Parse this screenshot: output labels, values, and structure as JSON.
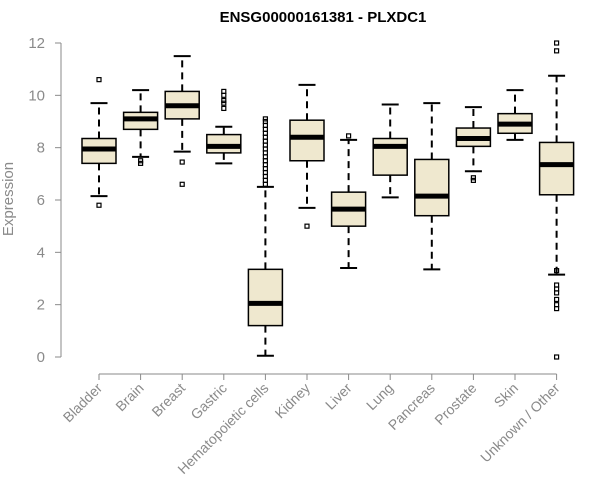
{
  "chart_data": {
    "type": "box",
    "title": "ENSG00000161381 - PLXDC1",
    "ylabel": "Expression",
    "xlabel": "",
    "ylim": [
      0,
      12
    ],
    "yticks": [
      0,
      2,
      4,
      6,
      8,
      10,
      12
    ],
    "grid": false,
    "box_fill": "#efe8cf",
    "box_stroke": "#000000",
    "categories": [
      "Bladder",
      "Brain",
      "Breast",
      "Gastric",
      "Hematopoietic cells",
      "Kidney",
      "Liver",
      "Lung",
      "Pancreas",
      "Prostate",
      "Skin",
      "Unknown / Other"
    ],
    "boxes": [
      {
        "whisker_low": 6.15,
        "q1": 7.4,
        "median": 7.95,
        "q3": 8.35,
        "whisker_high": 9.7,
        "outliers": [
          5.8,
          10.6
        ]
      },
      {
        "whisker_low": 7.65,
        "q1": 8.7,
        "median": 9.1,
        "q3": 9.35,
        "whisker_high": 10.2,
        "outliers": [
          7.4,
          7.5
        ]
      },
      {
        "whisker_low": 7.85,
        "q1": 9.1,
        "median": 9.6,
        "q3": 10.15,
        "whisker_high": 11.5,
        "outliers": [
          6.6,
          7.45
        ]
      },
      {
        "whisker_low": 7.4,
        "q1": 7.8,
        "median": 8.05,
        "q3": 8.5,
        "whisker_high": 8.8,
        "outliers": [
          9.5,
          9.7,
          9.8,
          10.0,
          10.15
        ]
      },
      {
        "whisker_low": 0.05,
        "q1": 1.2,
        "median": 2.05,
        "q3": 3.35,
        "whisker_high": 6.5,
        "outliers": [
          6.6,
          6.75,
          6.9,
          7.05,
          7.2,
          7.35,
          7.5,
          7.65,
          7.8,
          7.95,
          8.1,
          8.25,
          8.4,
          8.55,
          8.7,
          8.85,
          9.0,
          9.1
        ]
      },
      {
        "whisker_low": 5.7,
        "q1": 7.5,
        "median": 8.4,
        "q3": 9.05,
        "whisker_high": 10.4,
        "outliers": [
          5.0
        ]
      },
      {
        "whisker_low": 3.4,
        "q1": 5.0,
        "median": 5.65,
        "q3": 6.3,
        "whisker_high": 8.3,
        "outliers": [
          8.45
        ]
      },
      {
        "whisker_low": 6.1,
        "q1": 6.95,
        "median": 8.05,
        "q3": 8.35,
        "whisker_high": 9.65,
        "outliers": []
      },
      {
        "whisker_low": 3.35,
        "q1": 5.4,
        "median": 6.15,
        "q3": 7.55,
        "whisker_high": 9.7,
        "outliers": []
      },
      {
        "whisker_low": 7.1,
        "q1": 8.05,
        "median": 8.35,
        "q3": 8.75,
        "whisker_high": 9.55,
        "outliers": [
          6.75,
          6.85
        ]
      },
      {
        "whisker_low": 8.3,
        "q1": 8.55,
        "median": 8.9,
        "q3": 9.3,
        "whisker_high": 10.2,
        "outliers": []
      },
      {
        "whisker_low": 3.15,
        "q1": 6.2,
        "median": 7.35,
        "q3": 8.2,
        "whisker_high": 10.75,
        "outliers": [
          0.0,
          1.85,
          2.0,
          2.2,
          2.45,
          2.6,
          2.75,
          3.3,
          11.7,
          12.0
        ]
      }
    ]
  }
}
